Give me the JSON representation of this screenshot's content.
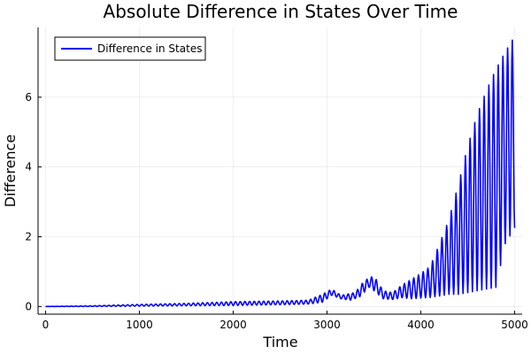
{
  "chart_data": {
    "type": "line",
    "title": "Absolute Difference in States Over Time",
    "xlabel": "Time",
    "ylabel": "Difference",
    "xlim": [
      -80,
      5080
    ],
    "ylim": [
      -0.22,
      8.0
    ],
    "xticks": [
      0,
      1000,
      2000,
      3000,
      4000,
      5000
    ],
    "yticks": [
      0,
      2,
      4,
      6
    ],
    "grid": true,
    "legend": "top-left",
    "series": [
      {
        "name": "Difference in States",
        "color": "#0000ff",
        "oscillation_period": 50,
        "envelope_upper": [
          [
            0,
            0.0
          ],
          [
            500,
            0.02
          ],
          [
            1000,
            0.06
          ],
          [
            1500,
            0.09
          ],
          [
            2000,
            0.14
          ],
          [
            2500,
            0.16
          ],
          [
            2800,
            0.18
          ],
          [
            2950,
            0.35
          ],
          [
            3050,
            0.5
          ],
          [
            3150,
            0.32
          ],
          [
            3300,
            0.4
          ],
          [
            3400,
            0.75
          ],
          [
            3500,
            0.88
          ],
          [
            3600,
            0.45
          ],
          [
            3700,
            0.4
          ],
          [
            3800,
            0.62
          ],
          [
            3900,
            0.78
          ],
          [
            4000,
            0.95
          ],
          [
            4100,
            1.15
          ],
          [
            4200,
            1.8
          ],
          [
            4300,
            2.5
          ],
          [
            4400,
            3.5
          ],
          [
            4500,
            4.6
          ],
          [
            4600,
            5.5
          ],
          [
            4700,
            6.2
          ],
          [
            4800,
            6.8
          ],
          [
            4900,
            7.3
          ],
          [
            5000,
            7.75
          ]
        ],
        "envelope_lower": [
          [
            0,
            0.0
          ],
          [
            500,
            0.0
          ],
          [
            1000,
            0.01
          ],
          [
            1500,
            0.02
          ],
          [
            2000,
            0.03
          ],
          [
            2500,
            0.05
          ],
          [
            2800,
            0.07
          ],
          [
            2950,
            0.12
          ],
          [
            3050,
            0.32
          ],
          [
            3150,
            0.22
          ],
          [
            3250,
            0.18
          ],
          [
            3350,
            0.28
          ],
          [
            3450,
            0.55
          ],
          [
            3500,
            0.45
          ],
          [
            3600,
            0.22
          ],
          [
            3700,
            0.2
          ],
          [
            3800,
            0.25
          ],
          [
            3900,
            0.22
          ],
          [
            4000,
            0.24
          ],
          [
            4100,
            0.26
          ],
          [
            4200,
            0.3
          ],
          [
            4300,
            0.35
          ],
          [
            4400,
            0.35
          ],
          [
            4500,
            0.4
          ],
          [
            4600,
            0.45
          ],
          [
            4700,
            0.5
          ],
          [
            4800,
            0.55
          ],
          [
            4900,
            1.8
          ],
          [
            5000,
            2.25
          ]
        ]
      }
    ]
  }
}
